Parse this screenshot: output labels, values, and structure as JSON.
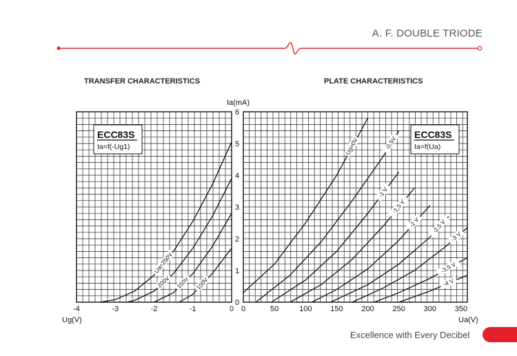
{
  "header": {
    "title": "A. F. DOUBLE TRIODE",
    "accent_color": "#e3202a"
  },
  "footer": {
    "tagline": "Excellence with Every Decibel",
    "accent_color": "#e3202a"
  },
  "chart_data": [
    {
      "type": "line",
      "title": "TRANSFER CHARACTERISTICS",
      "xlabel": "Ug(V)",
      "ylabel": "Ia(mA)",
      "xlim": [
        -4,
        0
      ],
      "ylim": [
        0,
        6
      ],
      "x_ticks": [
        "-4",
        "-3",
        "-2",
        "-1",
        "0"
      ],
      "y_ticks": [
        "0",
        "1",
        "2",
        "3",
        "4",
        "5",
        "6"
      ],
      "grid": true,
      "legend_box": {
        "model": "ECC83S",
        "formula": "Ia=f(-Ug1)"
      },
      "series": [
        {
          "name": "Ua=250V",
          "x": [
            -3.4,
            -3.0,
            -2.5,
            -2.0,
            -1.5,
            -1.0,
            -0.5,
            0.0
          ],
          "y": [
            0.0,
            0.08,
            0.35,
            0.85,
            1.6,
            2.55,
            3.7,
            5.05
          ]
        },
        {
          "name": "200V",
          "x": [
            -2.7,
            -2.5,
            -2.0,
            -1.5,
            -1.0,
            -0.5,
            0.0
          ],
          "y": [
            0.0,
            0.06,
            0.35,
            0.9,
            1.7,
            2.7,
            3.9
          ]
        },
        {
          "name": "150V",
          "x": [
            -2.0,
            -1.5,
            -1.0,
            -0.5,
            0.0
          ],
          "y": [
            0.0,
            0.3,
            0.9,
            1.75,
            2.8
          ]
        },
        {
          "name": "100V",
          "x": [
            -1.35,
            -1.0,
            -0.5,
            0.0
          ],
          "y": [
            0.0,
            0.25,
            0.9,
            1.7
          ]
        }
      ]
    },
    {
      "type": "line",
      "title": "PLATE CHARACTERISTICS",
      "xlabel": "Ua(V)",
      "ylabel": "",
      "xlim": [
        0,
        360
      ],
      "ylim": [
        0,
        6
      ],
      "x_ticks": [
        "0",
        "50",
        "100",
        "150",
        "200",
        "250",
        "300",
        "350"
      ],
      "grid": true,
      "legend_box": {
        "model": "ECC83S",
        "formula": "Ia=f(Ua)"
      },
      "series": [
        {
          "name": "Ug=0V",
          "x": [
            0,
            50,
            100,
            150,
            200
          ],
          "y": [
            0.3,
            1.2,
            2.5,
            4.0,
            5.8
          ]
        },
        {
          "name": "-0,5V",
          "x": [
            20,
            75,
            125,
            175,
            225,
            250
          ],
          "y": [
            0.0,
            0.85,
            1.9,
            3.2,
            4.6,
            5.4
          ]
        },
        {
          "name": "-1 V",
          "x": [
            45,
            100,
            150,
            200,
            250
          ],
          "y": [
            0.0,
            0.7,
            1.6,
            2.8,
            4.1
          ]
        },
        {
          "name": "-1,5 V",
          "x": [
            75,
            125,
            175,
            225,
            275
          ],
          "y": [
            0.0,
            0.55,
            1.35,
            2.4,
            3.6
          ]
        },
        {
          "name": "-2 V",
          "x": [
            110,
            150,
            200,
            250,
            300
          ],
          "y": [
            0.0,
            0.4,
            1.05,
            1.95,
            3.05
          ]
        },
        {
          "name": "-2,5 V",
          "x": [
            140,
            200,
            250,
            300,
            330
          ],
          "y": [
            0.0,
            0.55,
            1.2,
            2.05,
            2.7
          ]
        },
        {
          "name": "-3 V",
          "x": [
            175,
            225,
            275,
            325,
            360
          ],
          "y": [
            0.0,
            0.45,
            1.0,
            1.75,
            2.35
          ]
        },
        {
          "name": "-3,5 V",
          "x": [
            210,
            250,
            300,
            360
          ],
          "y": [
            0.0,
            0.3,
            0.75,
            1.4
          ]
        },
        {
          "name": "-4 V",
          "x": [
            250,
            300,
            360
          ],
          "y": [
            0.0,
            0.35,
            0.85
          ]
        }
      ]
    }
  ]
}
